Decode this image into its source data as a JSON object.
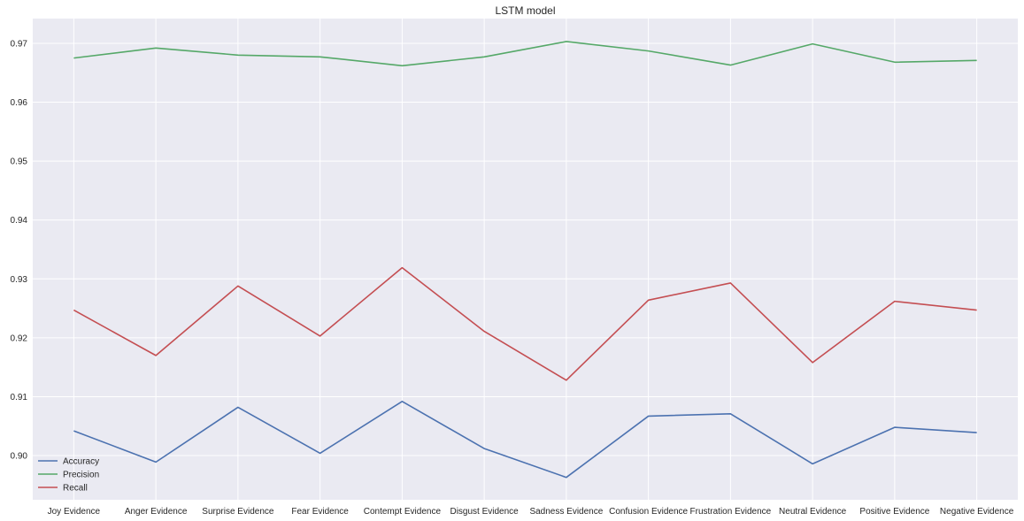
{
  "chart_data": {
    "type": "line",
    "title": "LSTM model",
    "xlabel": "",
    "ylabel": "",
    "categories": [
      "Joy Evidence",
      "Anger Evidence",
      "Surprise Evidence",
      "Fear Evidence",
      "Contempt Evidence",
      "Disgust Evidence",
      "Sadness Evidence",
      "Confusion Evidence",
      "Frustration Evidence",
      "Neutral Evidence",
      "Positive Evidence",
      "Negative Evidence"
    ],
    "series": [
      {
        "name": "Accuracy",
        "color": "#4c72b0",
        "values": [
          0.9042,
          0.8989,
          0.9082,
          0.9004,
          0.9092,
          0.9012,
          0.8963,
          0.9067,
          0.9071,
          0.8986,
          0.9048,
          0.9039
        ]
      },
      {
        "name": "Precision",
        "color": "#55a868",
        "values": [
          0.9675,
          0.9692,
          0.968,
          0.9677,
          0.9662,
          0.9677,
          0.9703,
          0.9687,
          0.9663,
          0.9699,
          0.9668,
          0.9671
        ]
      },
      {
        "name": "Recall",
        "color": "#c44e52",
        "values": [
          0.9247,
          0.917,
          0.9288,
          0.9203,
          0.9319,
          0.9211,
          0.9128,
          0.9264,
          0.9293,
          0.9158,
          0.9262,
          0.9247
        ]
      }
    ],
    "yticks": [
      "0.90",
      "0.91",
      "0.92",
      "0.93",
      "0.94",
      "0.95",
      "0.96",
      "0.97"
    ],
    "ylim": [
      0.8925,
      0.9742
    ],
    "grid": true,
    "legend": "lower-left",
    "colors": {
      "background": "#eaeaf2",
      "grid": "#ffffff"
    }
  }
}
